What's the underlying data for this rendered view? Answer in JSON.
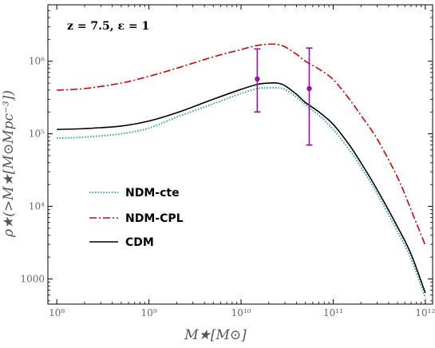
{
  "chart_data": {
    "type": "line",
    "annotation": "z = 7.5, ε = 1",
    "xlabel": "M★[M⊙]",
    "ylabel": "ρ★(>M★[M⊙Mpc⁻³])",
    "xscale": "log",
    "yscale": "log",
    "xlim": [
      80000000,
      1200000000000
    ],
    "ylim": [
      450,
      6000000
    ],
    "legend_position": "middle-left",
    "x_ticks": [
      {
        "value": 100000000,
        "label": "10⁸"
      },
      {
        "value": 1000000000,
        "label": "10⁹"
      },
      {
        "value": 10000000000,
        "label": "10¹⁰"
      },
      {
        "value": 100000000000,
        "label": "10¹¹"
      },
      {
        "value": 1000000000000,
        "label": "10¹²"
      }
    ],
    "y_ticks": [
      {
        "value": 1000,
        "label": "1000"
      },
      {
        "value": 10000,
        "label": "10⁴"
      },
      {
        "value": 100000,
        "label": "10⁵"
      },
      {
        "value": 1000000,
        "label": "10⁶"
      }
    ],
    "series": [
      {
        "name": "NDM-cte",
        "color": "#17a2b8",
        "dash": "dotted",
        "x": [
          100000000,
          200000000,
          500000000,
          1000000000,
          2000000000,
          5000000000,
          10000000000,
          15000000000,
          20000000000,
          25000000000,
          30000000000,
          40000000000,
          50000000000,
          70000000000,
          100000000000,
          150000000000,
          200000000000,
          300000000000,
          500000000000,
          700000000000,
          1000000000000
        ],
        "y": [
          87000,
          90000,
          100000,
          120000,
          170000,
          260000,
          360000,
          420000,
          430000,
          430000,
          410000,
          320000,
          250000,
          180000,
          115000,
          60000,
          35000,
          15000,
          4500,
          1900,
          550
        ]
      },
      {
        "name": "NDM-CPL",
        "color": "#e00000",
        "dash": "dashdot",
        "x": [
          100000000,
          200000000,
          500000000,
          1000000000,
          2000000000,
          5000000000,
          10000000000,
          15000000000,
          20000000000,
          25000000000,
          30000000000,
          40000000000,
          50000000000,
          70000000000,
          100000000000,
          150000000000,
          200000000000,
          300000000000,
          500000000000,
          700000000000,
          1000000000000
        ],
        "y": [
          400000,
          420000,
          500000,
          620000,
          800000,
          1150000,
          1450000,
          1650000,
          1720000,
          1700000,
          1580000,
          1250000,
          1000000,
          780000,
          560000,
          300000,
          180000,
          85000,
          25000,
          9000,
          2900
        ]
      },
      {
        "name": "CDM",
        "color": "#000000",
        "dash": "solid",
        "x": [
          100000000,
          200000000,
          500000000,
          1000000000,
          2000000000,
          5000000000,
          10000000000,
          15000000000,
          20000000000,
          25000000000,
          30000000000,
          40000000000,
          50000000000,
          70000000000,
          100000000000,
          150000000000,
          200000000000,
          300000000000,
          500000000000,
          700000000000,
          1000000000000
        ],
        "y": [
          115000,
          118000,
          128000,
          150000,
          195000,
          300000,
          410000,
          480000,
          500000,
          500000,
          460000,
          350000,
          270000,
          200000,
          135000,
          70000,
          40000,
          17000,
          5200,
          2200,
          640
        ]
      }
    ],
    "error_points": [
      {
        "x": 15000000000,
        "y": 570000,
        "ylow": 200000,
        "yhigh": 1480000,
        "color": "#9c0fa8"
      },
      {
        "x": 55000000000,
        "y": 420000,
        "ylow": 70000,
        "yhigh": 1520000,
        "color": "#9c0fa8"
      }
    ]
  }
}
